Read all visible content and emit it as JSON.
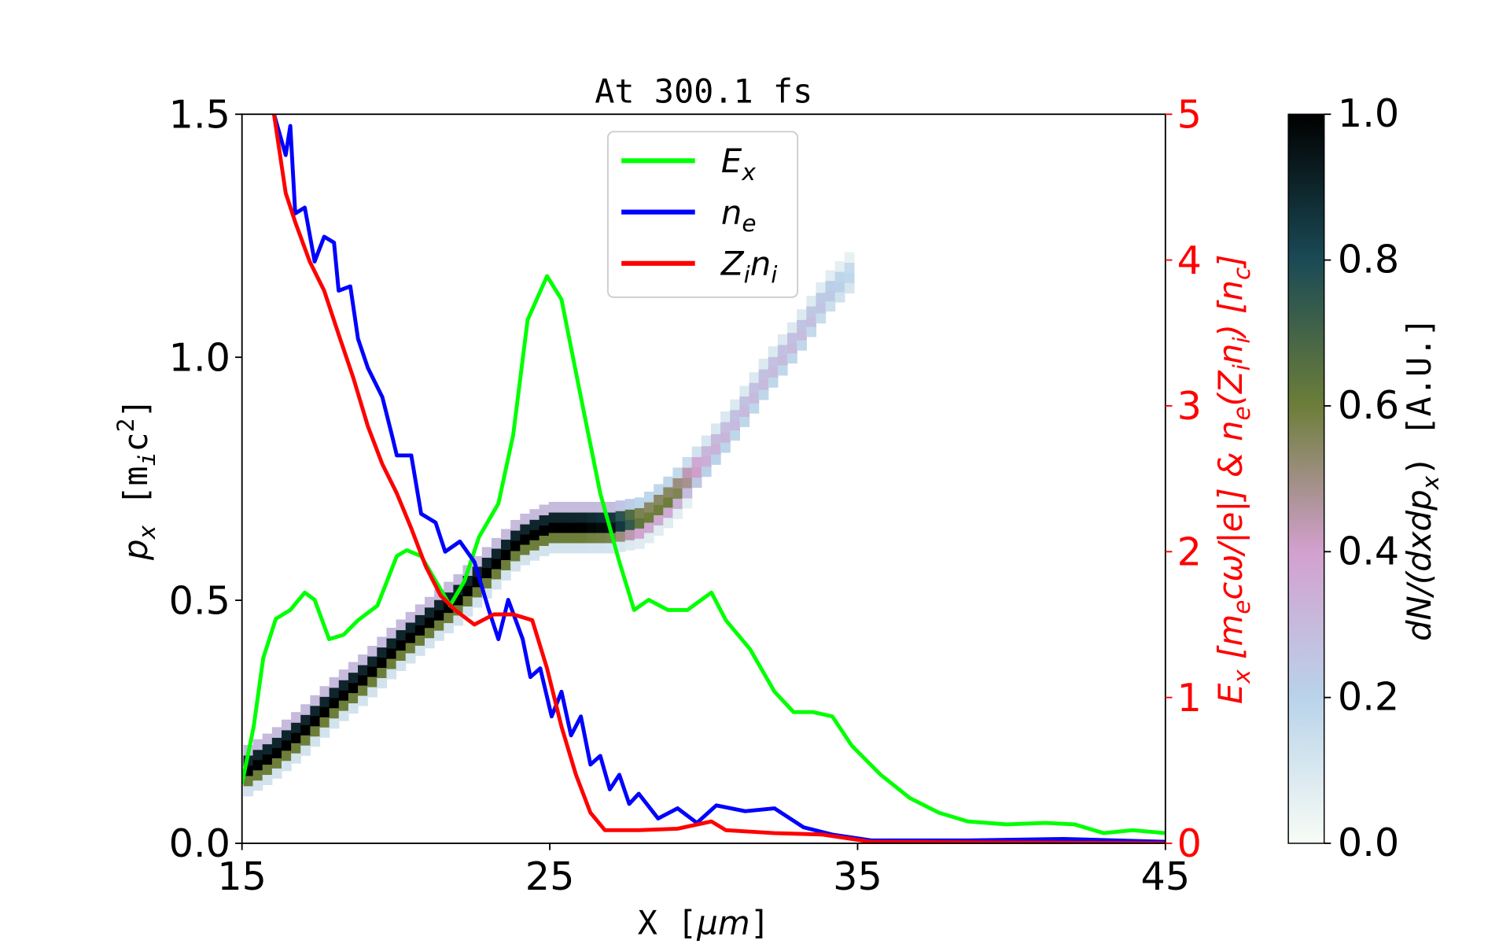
{
  "chart_data": {
    "type": "line",
    "title": "At 300.1 fs",
    "xlabel": {
      "parts": [
        "X [",
        "μm",
        "]"
      ]
    },
    "ylabel_left": {
      "parts": [
        "p",
        "x",
        "  [m",
        "i",
        "c",
        "2",
        "]"
      ]
    },
    "ylabel_right": {
      "parts": [
        "E",
        "x",
        "  [m",
        "e",
        "cω/|e|]  &  n",
        "e",
        "(Z",
        "i",
        "n",
        "i",
        ")  [n",
        "c",
        "]"
      ]
    },
    "colorbar_label": {
      "parts": [
        "dN/(dxdp",
        "x",
        ")  [A.U.]"
      ]
    },
    "xlim": [
      15,
      45
    ],
    "ylim_left": [
      0,
      1.5
    ],
    "ylim_right": [
      0,
      5
    ],
    "x_ticks": [
      "15",
      "25",
      "35",
      "45"
    ],
    "y_ticks_left": [
      "0.0",
      "0.5",
      "1.0",
      "1.5"
    ],
    "y_ticks_right": [
      "0",
      "1",
      "2",
      "3",
      "4",
      "5"
    ],
    "colorbar": {
      "range": [
        0,
        1
      ],
      "ticks": [
        "0.0",
        "0.2",
        "0.4",
        "0.6",
        "0.8",
        "1.0"
      ],
      "colormap": [
        "#f7fcf5",
        "#b9d3ea",
        "#d3a0cf",
        "#6c7e39",
        "#1b4a56",
        "#000000"
      ]
    },
    "legend": {
      "placement": "top-center",
      "entries": [
        {
          "label": "E",
          "sub": "x",
          "color": "#00ff00"
        },
        {
          "label": "n",
          "sub": "e",
          "color": "#0000ff"
        },
        {
          "label": "Z",
          "sub": "i",
          "label2": "n",
          "sub2": "i",
          "color": "#ff0000"
        }
      ]
    },
    "series": [
      {
        "name": "Ex",
        "axis": "right",
        "color": "#00ff00",
        "points": [
          [
            15.0,
            0.41
          ],
          [
            15.38,
            0.8
          ],
          [
            15.69,
            1.27
          ],
          [
            16.1,
            1.54
          ],
          [
            16.57,
            1.6
          ],
          [
            17.04,
            1.72
          ],
          [
            17.36,
            1.67
          ],
          [
            17.83,
            1.4
          ],
          [
            18.3,
            1.43
          ],
          [
            18.77,
            1.53
          ],
          [
            19.4,
            1.63
          ],
          [
            20.03,
            1.97
          ],
          [
            20.35,
            2.01
          ],
          [
            20.82,
            1.97
          ],
          [
            21.29,
            1.8
          ],
          [
            21.76,
            1.63
          ],
          [
            22.23,
            1.8
          ],
          [
            22.7,
            2.1
          ],
          [
            23.33,
            2.33
          ],
          [
            23.81,
            2.8
          ],
          [
            24.28,
            3.59
          ],
          [
            24.91,
            3.89
          ],
          [
            25.38,
            3.73
          ],
          [
            26.01,
            3.06
          ],
          [
            26.64,
            2.4
          ],
          [
            27.26,
            1.93
          ],
          [
            27.74,
            1.6
          ],
          [
            28.21,
            1.67
          ],
          [
            28.84,
            1.6
          ],
          [
            29.47,
            1.6
          ],
          [
            30.25,
            1.72
          ],
          [
            30.72,
            1.53
          ],
          [
            31.51,
            1.33
          ],
          [
            32.3,
            1.04
          ],
          [
            32.92,
            0.9
          ],
          [
            33.55,
            0.9
          ],
          [
            34.18,
            0.87
          ],
          [
            34.81,
            0.67
          ],
          [
            35.75,
            0.47
          ],
          [
            36.7,
            0.31
          ],
          [
            37.64,
            0.21
          ],
          [
            38.58,
            0.15
          ],
          [
            39.84,
            0.13
          ],
          [
            41.1,
            0.14
          ],
          [
            42.04,
            0.13
          ],
          [
            42.99,
            0.07
          ],
          [
            43.93,
            0.09
          ],
          [
            45.0,
            0.07
          ]
        ]
      },
      {
        "name": "ne",
        "axis": "right",
        "color": "#0000ff",
        "points": [
          [
            16.04,
            5.0
          ],
          [
            16.42,
            4.72
          ],
          [
            16.57,
            4.92
          ],
          [
            16.73,
            4.32
          ],
          [
            17.04,
            4.36
          ],
          [
            17.36,
            3.99
          ],
          [
            17.67,
            4.16
          ],
          [
            17.99,
            4.12
          ],
          [
            18.14,
            3.79
          ],
          [
            18.52,
            3.82
          ],
          [
            18.77,
            3.46
          ],
          [
            19.09,
            3.26
          ],
          [
            19.56,
            3.06
          ],
          [
            19.87,
            2.8
          ],
          [
            20.03,
            2.66
          ],
          [
            20.5,
            2.66
          ],
          [
            20.82,
            2.26
          ],
          [
            21.29,
            2.2
          ],
          [
            21.6,
            2.0
          ],
          [
            22.08,
            2.07
          ],
          [
            22.55,
            1.93
          ],
          [
            23.02,
            1.6
          ],
          [
            23.33,
            1.4
          ],
          [
            23.65,
            1.67
          ],
          [
            24.12,
            1.4
          ],
          [
            24.37,
            1.14
          ],
          [
            24.69,
            1.2
          ],
          [
            25.06,
            0.87
          ],
          [
            25.38,
            1.04
          ],
          [
            25.69,
            0.74
          ],
          [
            26.01,
            0.87
          ],
          [
            26.32,
            0.54
          ],
          [
            26.64,
            0.6
          ],
          [
            26.95,
            0.37
          ],
          [
            27.26,
            0.47
          ],
          [
            27.58,
            0.27
          ],
          [
            27.89,
            0.34
          ],
          [
            28.52,
            0.17
          ],
          [
            29.15,
            0.24
          ],
          [
            29.78,
            0.14
          ],
          [
            30.41,
            0.26
          ],
          [
            31.35,
            0.22
          ],
          [
            32.3,
            0.24
          ],
          [
            33.24,
            0.11
          ],
          [
            34.18,
            0.06
          ],
          [
            35.44,
            0.02
          ],
          [
            38.58,
            0.02
          ],
          [
            41.7,
            0.03
          ],
          [
            45.0,
            0.01
          ]
        ]
      },
      {
        "name": "Zini",
        "axis": "right",
        "color": "#ff0000",
        "points": [
          [
            16.04,
            5.0
          ],
          [
            16.42,
            4.46
          ],
          [
            16.73,
            4.26
          ],
          [
            17.2,
            3.99
          ],
          [
            17.67,
            3.79
          ],
          [
            18.14,
            3.49
          ],
          [
            18.62,
            3.19
          ],
          [
            19.09,
            2.86
          ],
          [
            19.56,
            2.6
          ],
          [
            20.03,
            2.4
          ],
          [
            20.5,
            2.16
          ],
          [
            20.97,
            1.9
          ],
          [
            21.45,
            1.7
          ],
          [
            21.92,
            1.6
          ],
          [
            22.55,
            1.5
          ],
          [
            23.18,
            1.57
          ],
          [
            23.81,
            1.57
          ],
          [
            24.43,
            1.53
          ],
          [
            24.91,
            1.2
          ],
          [
            25.38,
            0.8
          ],
          [
            25.85,
            0.47
          ],
          [
            26.32,
            0.21
          ],
          [
            26.79,
            0.09
          ],
          [
            27.89,
            0.09
          ],
          [
            29.15,
            0.1
          ],
          [
            30.25,
            0.15
          ],
          [
            30.72,
            0.09
          ],
          [
            32.3,
            0.07
          ],
          [
            33.87,
            0.06
          ],
          [
            34.81,
            0.03
          ],
          [
            35.44,
            0.01
          ],
          [
            45.0,
            0.0
          ]
        ]
      }
    ],
    "phase_space_ridge": {
      "axis": "left",
      "columns": [
        "x",
        "px",
        "density"
      ],
      "points": [
        [
          15.2,
          0.15,
          1.0
        ],
        [
          16,
          0.18,
          1.0
        ],
        [
          17,
          0.23,
          1.0
        ],
        [
          18,
          0.29,
          1.0
        ],
        [
          19,
          0.34,
          1.0
        ],
        [
          20,
          0.4,
          1.0
        ],
        [
          21,
          0.45,
          1.0
        ],
        [
          22,
          0.5,
          1.0
        ],
        [
          23,
          0.56,
          1.0
        ],
        [
          24,
          0.62,
          1.0
        ],
        [
          25,
          0.65,
          1.0
        ],
        [
          26,
          0.65,
          1.0
        ],
        [
          27,
          0.65,
          0.95
        ],
        [
          28,
          0.66,
          0.6
        ],
        [
          29,
          0.71,
          0.6
        ],
        [
          30,
          0.78,
          0.35
        ],
        [
          31,
          0.86,
          0.3
        ],
        [
          32,
          0.95,
          0.3
        ],
        [
          33,
          1.03,
          0.3
        ],
        [
          34,
          1.12,
          0.25
        ],
        [
          35,
          1.18,
          0.15
        ]
      ]
    }
  }
}
